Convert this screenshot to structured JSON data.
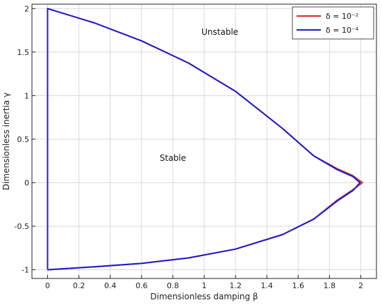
{
  "chart_data": {
    "type": "line",
    "xlabel": "Dimensionless damping β",
    "ylabel": "Dimensionless inertia γ",
    "xlim": [
      -0.1,
      2.1
    ],
    "ylim": [
      -1.1,
      2.05
    ],
    "xticks": [
      {
        "value": 0,
        "label": "0"
      },
      {
        "value": 0.2,
        "label": "0.2"
      },
      {
        "value": 0.4,
        "label": "0.4"
      },
      {
        "value": 0.6,
        "label": "0.6"
      },
      {
        "value": 0.8,
        "label": "0.8"
      },
      {
        "value": 1.0,
        "label": "1"
      },
      {
        "value": 1.2,
        "label": "1.2"
      },
      {
        "value": 1.4,
        "label": "1.4"
      },
      {
        "value": 1.6,
        "label": "1.6"
      },
      {
        "value": 1.8,
        "label": "1.8"
      },
      {
        "value": 2.0,
        "label": "2"
      }
    ],
    "yticks": [
      {
        "value": -1,
        "label": "-1"
      },
      {
        "value": -0.5,
        "label": "-0.5"
      },
      {
        "value": 0,
        "label": "0"
      },
      {
        "value": 0.5,
        "label": "0.5"
      },
      {
        "value": 1,
        "label": "1"
      },
      {
        "value": 1.5,
        "label": "1.5"
      },
      {
        "value": 2,
        "label": "2"
      }
    ],
    "grid": true,
    "legend_position": "top-right",
    "series": [
      {
        "name": "δ = 10⁻²",
        "color": "#d62a1e",
        "points": [
          [
            0.0,
            -1.0
          ],
          [
            0.0,
            2.0
          ],
          [
            0.3,
            1.834
          ],
          [
            0.6,
            1.629
          ],
          [
            0.9,
            1.374
          ],
          [
            1.2,
            1.049
          ],
          [
            1.5,
            0.623
          ],
          [
            1.7,
            0.307
          ],
          [
            1.85,
            0.16
          ],
          [
            1.95,
            0.08
          ],
          [
            2.01,
            0.0
          ],
          [
            1.95,
            -0.08
          ],
          [
            1.85,
            -0.2
          ],
          [
            1.7,
            -0.418
          ],
          [
            1.5,
            -0.596
          ],
          [
            1.2,
            -0.763
          ],
          [
            0.9,
            -0.864
          ],
          [
            0.6,
            -0.927
          ],
          [
            0.3,
            -0.966
          ],
          [
            0.0,
            -1.0
          ]
        ]
      },
      {
        "name": "δ = 10⁻⁴",
        "color": "#1a1ad6",
        "points": [
          [
            0.0,
            -1.0
          ],
          [
            0.0,
            2.0
          ],
          [
            0.3,
            1.834
          ],
          [
            0.6,
            1.629
          ],
          [
            0.9,
            1.374
          ],
          [
            1.2,
            1.049
          ],
          [
            1.5,
            0.623
          ],
          [
            1.7,
            0.307
          ],
          [
            1.85,
            0.15
          ],
          [
            1.95,
            0.07
          ],
          [
            1.995,
            0.0
          ],
          [
            1.95,
            -0.09
          ],
          [
            1.85,
            -0.21
          ],
          [
            1.7,
            -0.418
          ],
          [
            1.5,
            -0.596
          ],
          [
            1.2,
            -0.763
          ],
          [
            0.9,
            -0.864
          ],
          [
            0.6,
            -0.927
          ],
          [
            0.3,
            -0.966
          ],
          [
            0.0,
            -1.0
          ]
        ]
      }
    ],
    "annotations": [
      {
        "text": "Unstable",
        "x": 1.1,
        "y": 1.7
      },
      {
        "text": "Stable",
        "x": 0.8,
        "y": 0.25
      }
    ]
  }
}
